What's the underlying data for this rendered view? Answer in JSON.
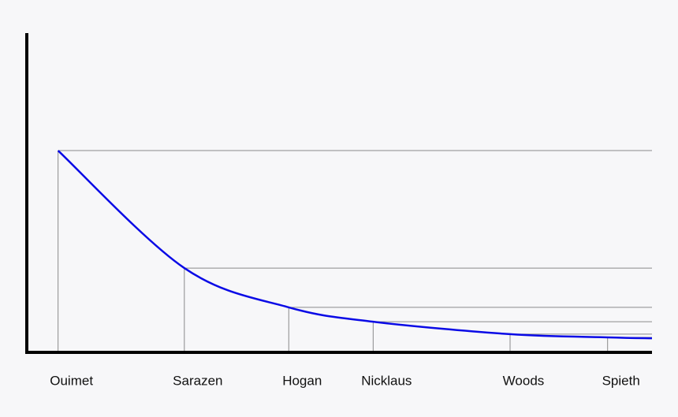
{
  "chart_data": {
    "type": "line",
    "x": [
      5,
      25.2,
      41.9,
      55.4,
      77.3,
      92.9,
      100
    ],
    "series": [
      {
        "color": "#0a0ae6",
        "values": [
          63.2,
          26.4,
          14.1,
          9.6,
          5.7,
          4.7,
          4.4
        ]
      }
    ],
    "xlim": [
      0,
      100
    ],
    "ylim": [
      0,
      100
    ],
    "xticks": [
      {
        "value": 5,
        "label": "Ouimet"
      },
      {
        "value": 25.2,
        "label": "Sarazen"
      },
      {
        "value": 41.9,
        "label": "Hogan"
      },
      {
        "value": 55.4,
        "label": "Nicklaus"
      },
      {
        "value": 77.3,
        "label": "Woods"
      },
      {
        "value": 92.9,
        "label": "Spieth"
      }
    ],
    "guide_color": "#8a8a8a"
  }
}
